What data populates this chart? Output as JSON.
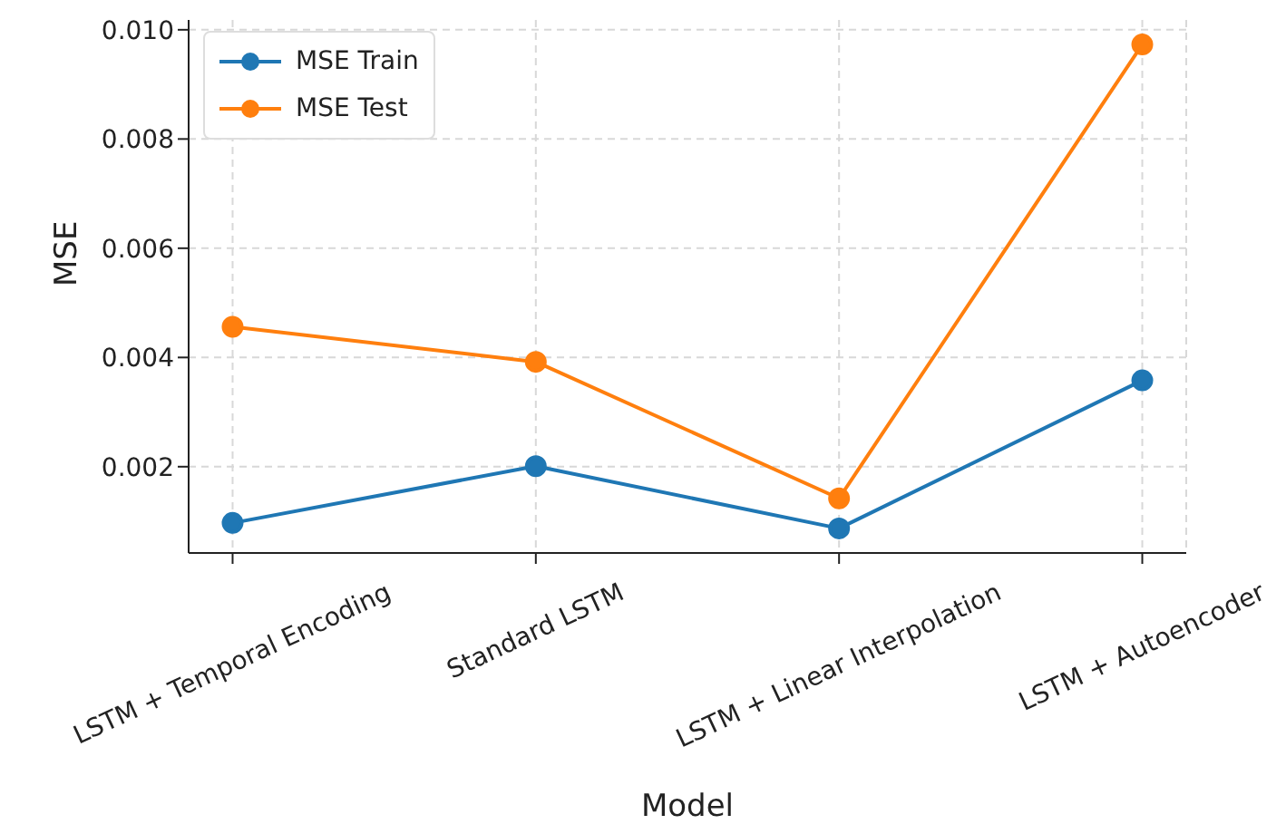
{
  "chart_data": {
    "type": "line",
    "xlabel": "Model",
    "ylabel": "MSE",
    "categories": [
      "LSTM + Temporal Encoding",
      "Standard LSTM",
      "LSTM + Linear Interpolation",
      "LSTM + Autoencoder"
    ],
    "series": [
      {
        "name": "MSE Train",
        "color": "#1f77b4",
        "values": [
          0.00097,
          0.00201,
          0.00087,
          0.00358
        ]
      },
      {
        "name": "MSE Test",
        "color": "#ff7f0e",
        "values": [
          0.00456,
          0.00392,
          0.00142,
          0.00973
        ]
      }
    ],
    "ylim": [
      0.00042,
      0.01018
    ],
    "yticks": [
      {
        "value": 0.002,
        "label": "0.002"
      },
      {
        "value": 0.004,
        "label": "0.004"
      },
      {
        "value": 0.006,
        "label": "0.006"
      },
      {
        "value": 0.008,
        "label": "0.008"
      },
      {
        "value": 0.01,
        "label": "0.010"
      }
    ],
    "grid": true,
    "legend": "top left",
    "marker": "circle",
    "line_style": "solid"
  }
}
